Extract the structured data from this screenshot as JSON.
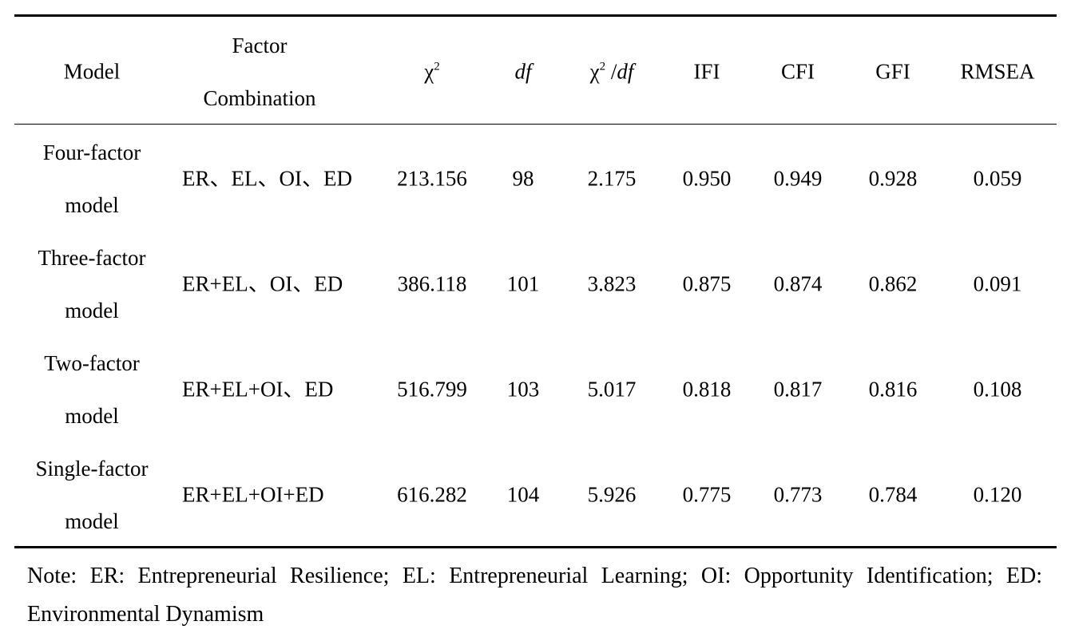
{
  "table": {
    "headers": {
      "model": "Model",
      "factor_line1": "Factor",
      "factor_line2": "Combination",
      "chi2_symbol": "χ",
      "chi2_sup": "2",
      "df": "df",
      "ratio_chi": "χ",
      "ratio_sup": "2",
      "ratio_rest": " /",
      "ratio_df": "df",
      "ifi": "IFI",
      "cfi": "CFI",
      "gfi": "GFI",
      "rmsea": "RMSEA"
    },
    "rows": [
      {
        "model_line1": "Four-factor",
        "model_line2": "model",
        "combination": "ER、EL、OI、ED",
        "chi2": "213.156",
        "df": "98",
        "chi2_df": "2.175",
        "ifi": "0.950",
        "cfi": "0.949",
        "gfi": "0.928",
        "rmsea": "0.059"
      },
      {
        "model_line1": "Three-factor",
        "model_line2": "model",
        "combination": "ER+EL、OI、ED",
        "chi2": "386.118",
        "df": "101",
        "chi2_df": "3.823",
        "ifi": "0.875",
        "cfi": "0.874",
        "gfi": "0.862",
        "rmsea": "0.091"
      },
      {
        "model_line1": "Two-factor",
        "model_line2": "model",
        "combination": "ER+EL+OI、ED",
        "chi2": "516.799",
        "df": "103",
        "chi2_df": "5.017",
        "ifi": "0.818",
        "cfi": "0.817",
        "gfi": "0.816",
        "rmsea": "0.108"
      },
      {
        "model_line1": "Single-factor",
        "model_line2": "model",
        "combination": "ER+EL+OI+ED",
        "chi2": "616.282",
        "df": "104",
        "chi2_df": "5.926",
        "ifi": "0.775",
        "cfi": "0.773",
        "gfi": "0.784",
        "rmsea": "0.120"
      }
    ]
  },
  "note": "Note: ER: Entrepreneurial Resilience; EL: Entrepreneurial Learning; OI: Opportunity Identification; ED: Environmental Dynamism"
}
